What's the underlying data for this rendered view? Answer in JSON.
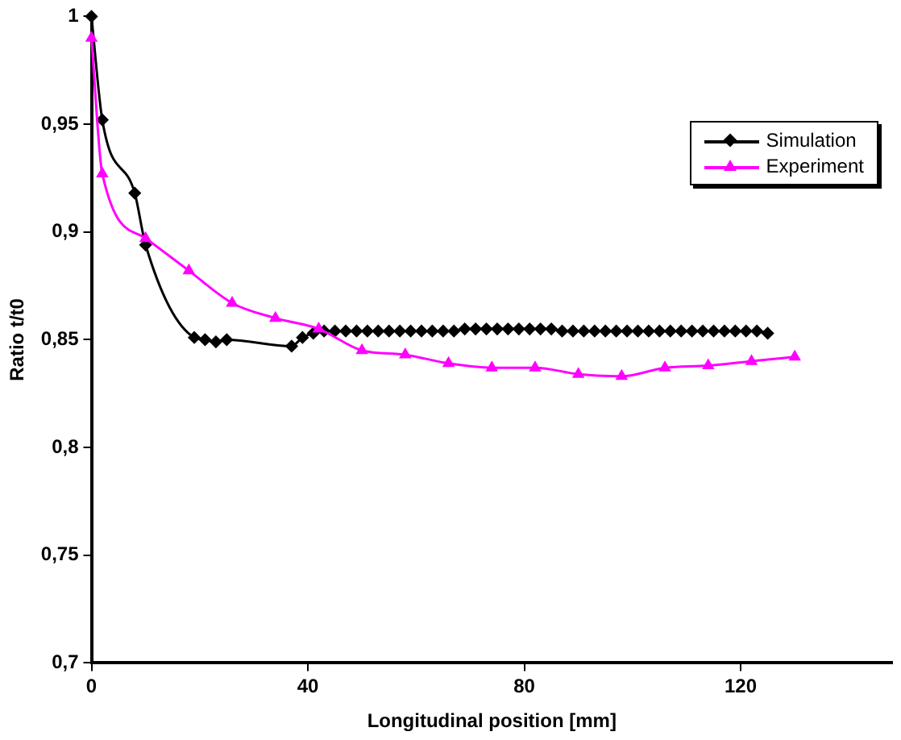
{
  "chart_data": {
    "type": "line",
    "xlabel": "Longitudinal position [mm]",
    "ylabel": "Ratio t/t0",
    "xlim": [
      0,
      148
    ],
    "xticks": [
      0,
      40,
      80,
      120
    ],
    "ylim": [
      0.7,
      1
    ],
    "yticks": [
      {
        "value": 0.7,
        "label": "0,7"
      },
      {
        "value": 0.75,
        "label": "0,75"
      },
      {
        "value": 0.8,
        "label": "0,8"
      },
      {
        "value": 0.85,
        "label": "0,85"
      },
      {
        "value": 0.9,
        "label": "0,9"
      },
      {
        "value": 0.95,
        "label": "0,95"
      },
      {
        "value": 1,
        "label": "1"
      }
    ],
    "grid": false,
    "legend": "top right",
    "series": [
      {
        "name": "Simulation",
        "color": "#000000",
        "marker": "diamond",
        "x": [
          0,
          2,
          8,
          10,
          19,
          21,
          23,
          25,
          37,
          39,
          41,
          43,
          45,
          47,
          49,
          51,
          53,
          55,
          57,
          59,
          61,
          63,
          65,
          67,
          69,
          71,
          73,
          75,
          77,
          79,
          81,
          83,
          85,
          87,
          89,
          91,
          93,
          95,
          97,
          99,
          101,
          103,
          105,
          107,
          109,
          111,
          113,
          115,
          117,
          119,
          121,
          123,
          125
        ],
        "values": [
          1,
          0.952,
          0.918,
          0.894,
          0.851,
          0.85,
          0.849,
          0.85,
          0.847,
          0.851,
          0.853,
          0.854,
          0.854,
          0.854,
          0.854,
          0.854,
          0.854,
          0.854,
          0.854,
          0.854,
          0.854,
          0.854,
          0.854,
          0.854,
          0.855,
          0.855,
          0.855,
          0.855,
          0.855,
          0.855,
          0.855,
          0.855,
          0.855,
          0.854,
          0.854,
          0.854,
          0.854,
          0.854,
          0.854,
          0.854,
          0.854,
          0.854,
          0.854,
          0.854,
          0.854,
          0.854,
          0.854,
          0.854,
          0.854,
          0.854,
          0.854,
          0.854,
          0.853
        ]
      },
      {
        "name": "Experiment",
        "color": "#ff00ff",
        "marker": "triangle",
        "x": [
          0,
          2,
          10,
          18,
          26,
          34,
          42,
          50,
          58,
          66,
          74,
          82,
          90,
          98,
          106,
          114,
          122,
          130
        ],
        "values": [
          0.99,
          0.927,
          0.897,
          0.882,
          0.867,
          0.86,
          0.855,
          0.845,
          0.843,
          0.839,
          0.837,
          0.837,
          0.834,
          0.833,
          0.837,
          0.838,
          0.84,
          0.842
        ]
      }
    ]
  }
}
